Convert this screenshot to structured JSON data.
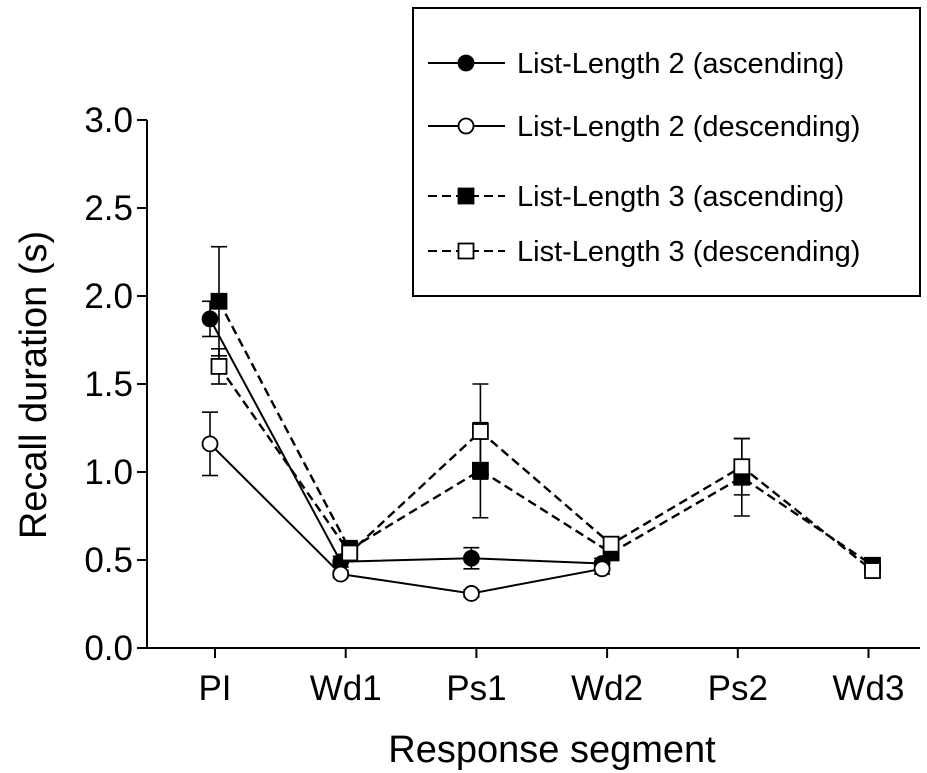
{
  "chart_data": {
    "type": "line",
    "xlabel": "Response segment",
    "ylabel": "Recall duration (s)",
    "categories": [
      "PI",
      "Wd1",
      "Ps1",
      "Wd2",
      "Ps2",
      "Wd3"
    ],
    "ylim": [
      0,
      3
    ],
    "yticks": [
      "0.0",
      "0.5",
      "1.0",
      "1.5",
      "2.0",
      "2.5",
      "3.0"
    ],
    "legend_position": "top-right",
    "grid": false,
    "series": [
      {
        "name": "List-Length 2 (ascending)",
        "marker": "circle",
        "fill": "filled",
        "line": "solid",
        "values": [
          1.87,
          0.49,
          0.51,
          0.48,
          null,
          null
        ],
        "errors": [
          0.1,
          0.03,
          0.06,
          0.03,
          null,
          null
        ]
      },
      {
        "name": "List-Length 2 (descending)",
        "marker": "circle",
        "fill": "open",
        "line": "solid",
        "values": [
          1.16,
          0.42,
          0.31,
          0.45,
          null,
          null
        ],
        "errors": [
          0.18,
          0.02,
          0.02,
          0.03,
          null,
          null
        ]
      },
      {
        "name": "List-Length 3 (ascending)",
        "marker": "square",
        "fill": "filled",
        "line": "dashed",
        "values": [
          1.97,
          0.56,
          1.01,
          0.54,
          0.97,
          0.47
        ],
        "errors": [
          0.31,
          0.05,
          0.27,
          0.04,
          0.22,
          0.03
        ]
      },
      {
        "name": "List-Length 3 (descending)",
        "marker": "square",
        "fill": "open",
        "line": "dashed",
        "values": [
          1.6,
          0.54,
          1.23,
          0.59,
          1.03,
          0.44
        ],
        "errors": [
          0.1,
          0.04,
          0.27,
          0.04,
          0.16,
          0.02
        ]
      }
    ]
  }
}
